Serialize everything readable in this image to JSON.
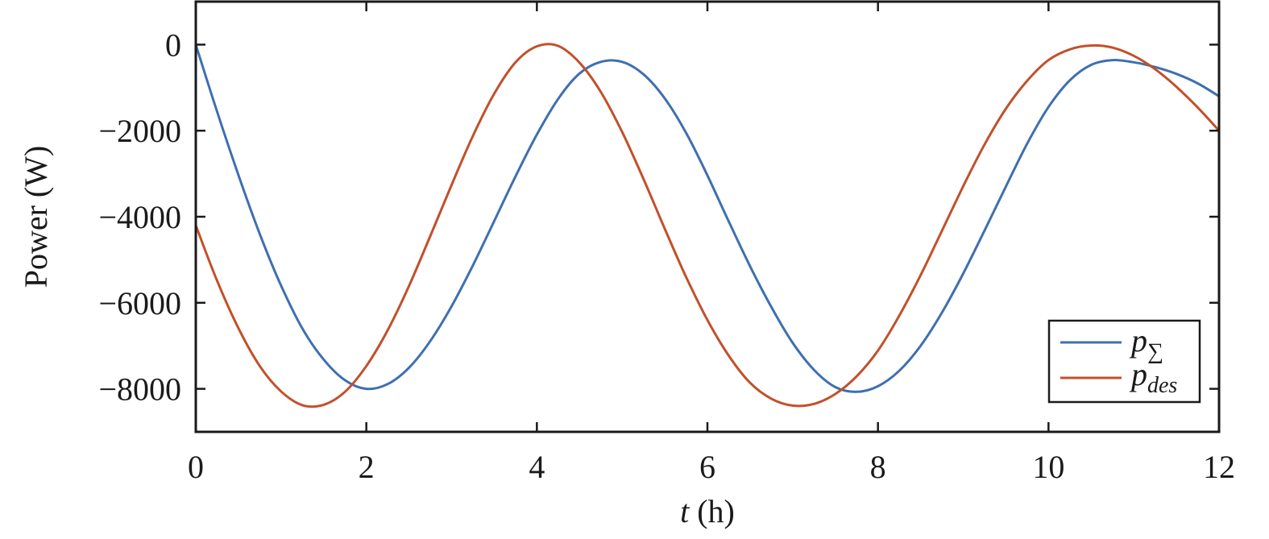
{
  "chart_data": {
    "type": "line",
    "title": "",
    "xlabel": {
      "var": "t",
      "unit": " (h)"
    },
    "ylabel": "Power (W)",
    "xlim": [
      0,
      12
    ],
    "ylim": [
      -9000,
      1000
    ],
    "xticks": [
      0,
      2,
      4,
      6,
      8,
      10,
      12
    ],
    "xtick_labels": [
      "0",
      "2",
      "4",
      "6",
      "8",
      "10",
      "12"
    ],
    "yticks": [
      0,
      -2000,
      -4000,
      -6000,
      -8000
    ],
    "ytick_labels": [
      "0",
      "−2000",
      "−4000",
      "−6000",
      "−8000"
    ],
    "grid": false,
    "legend_position": "bottom-right",
    "series": [
      {
        "name": "p",
        "subscript": "∑",
        "color": "#3f6fb0",
        "x": [
          0,
          0.25,
          0.5,
          0.75,
          1.0,
          1.25,
          1.5,
          1.75,
          2.0,
          2.25,
          2.5,
          2.75,
          3.0,
          3.25,
          3.5,
          3.75,
          4.0,
          4.25,
          4.5,
          4.75,
          5.0,
          5.25,
          5.5,
          5.75,
          6.0,
          6.25,
          6.5,
          6.75,
          7.0,
          7.25,
          7.5,
          7.75,
          8.0,
          8.25,
          8.5,
          8.75,
          9.0,
          9.25,
          9.5,
          9.75,
          10.0,
          10.25,
          10.5,
          10.75,
          11.0,
          11.25,
          11.5,
          11.75,
          12.0
        ],
        "y": [
          0,
          -1560,
          -3030,
          -4400,
          -5600,
          -6600,
          -7320,
          -7800,
          -8000,
          -7890,
          -7510,
          -6890,
          -6080,
          -5130,
          -4100,
          -3060,
          -2090,
          -1260,
          -670,
          -400,
          -400,
          -690,
          -1250,
          -2050,
          -3040,
          -4110,
          -5150,
          -6100,
          -6930,
          -7560,
          -7960,
          -8070,
          -7940,
          -7580,
          -7000,
          -6230,
          -5320,
          -4320,
          -3300,
          -2300,
          -1450,
          -830,
          -470,
          -360,
          -410,
          -520,
          -680,
          -900,
          -1200
        ]
      },
      {
        "name": "p",
        "subscript": "des",
        "color": "#c2502b",
        "x": [
          0,
          0.25,
          0.5,
          0.75,
          1.0,
          1.25,
          1.5,
          1.75,
          2.0,
          2.25,
          2.5,
          2.75,
          3.0,
          3.25,
          3.5,
          3.75,
          4.0,
          4.25,
          4.5,
          4.75,
          5.0,
          5.25,
          5.5,
          5.75,
          6.0,
          6.25,
          6.5,
          6.75,
          7.0,
          7.25,
          7.5,
          7.75,
          8.0,
          8.25,
          8.5,
          8.75,
          9.0,
          9.25,
          9.5,
          9.75,
          10.0,
          10.25,
          10.5,
          10.75,
          11.0,
          11.25,
          11.5,
          11.75,
          12.0
        ],
        "y": [
          -4200,
          -5490,
          -6590,
          -7470,
          -8060,
          -8380,
          -8370,
          -8070,
          -7470,
          -6640,
          -5610,
          -4450,
          -3260,
          -2120,
          -1140,
          -410,
          -40,
          -30,
          -420,
          -1100,
          -2030,
          -3120,
          -4280,
          -5400,
          -6400,
          -7230,
          -7860,
          -8230,
          -8390,
          -8350,
          -8120,
          -7710,
          -7110,
          -6300,
          -5360,
          -4330,
          -3290,
          -2320,
          -1490,
          -840,
          -360,
          -110,
          -20,
          -70,
          -260,
          -570,
          -980,
          -1460,
          -2000
        ]
      }
    ]
  }
}
